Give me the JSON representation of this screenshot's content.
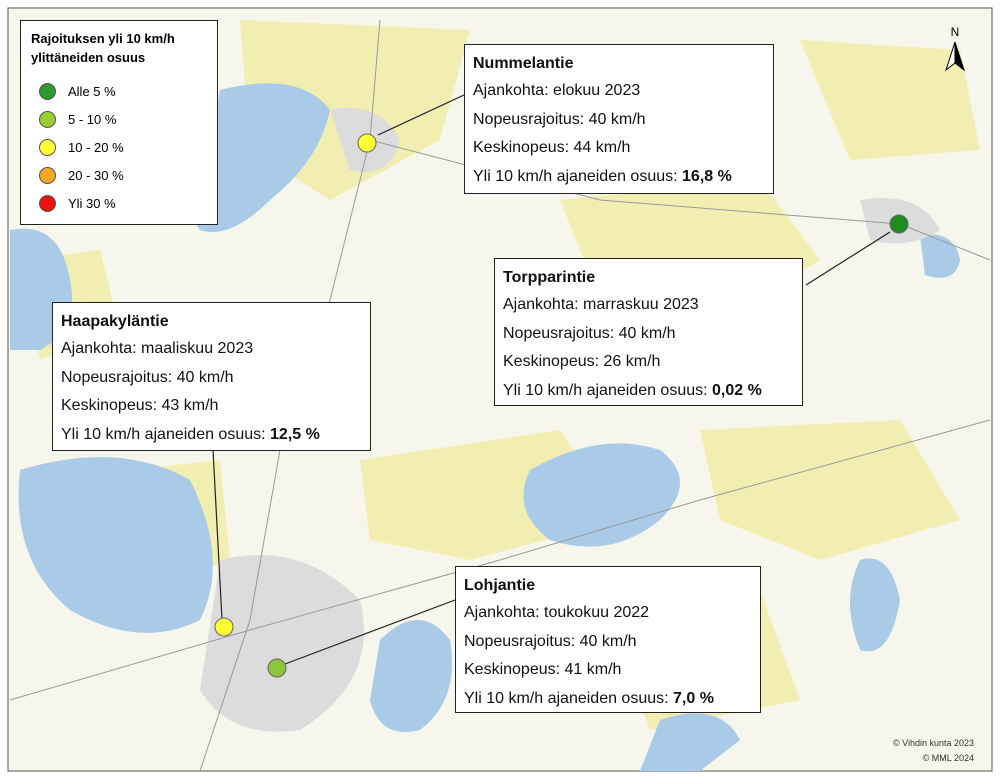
{
  "legend": {
    "title": "Rajoituksen yli 10 km/h ylittäneiden osuus",
    "items": [
      {
        "label": "Alle 5 %",
        "color": "#2e9a2e"
      },
      {
        "label": "5 - 10 %",
        "color": "#9acd32"
      },
      {
        "label": "10 - 20 %",
        "color": "#ffff33"
      },
      {
        "label": "20 - 30 %",
        "color": "#f5a623"
      },
      {
        "label": "Yli 30 %",
        "color": "#ee1111"
      }
    ]
  },
  "sites": [
    {
      "name": "Nummelantie",
      "date": "Ajankohta: elokuu 2023",
      "limit": "Nopeusrajoitus: 40 km/h",
      "speed": "Keskinopeus: 44 km/h",
      "share_label": "Yli 10 km/h ajaneiden osuus:",
      "share": "16,8 %",
      "color": "#ffff33"
    },
    {
      "name": "Torpparintie",
      "date": "Ajankohta: marraskuu 2023",
      "limit": "Nopeusrajoitus: 40 km/h",
      "speed": "Keskinopeus: 26 km/h",
      "share_label": "Yli 10 km/h ajaneiden osuus:",
      "share": "0,02 %",
      "color": "#1e8c1e"
    },
    {
      "name": "Haapakyläntie",
      "date": "Ajankohta: maaliskuu 2023",
      "limit": "Nopeusrajoitus: 40 km/h",
      "speed": "Keskinopeus: 43 km/h",
      "share_label": "Yli 10 km/h ajaneiden osuus:",
      "share": "12,5 %",
      "color": "#ffff33"
    },
    {
      "name": "Lohjantie",
      "date": "Ajankohta: toukokuu 2022",
      "limit": "Nopeusrajoitus: 40 km/h",
      "speed": "Keskinopeus: 41 km/h",
      "share_label": "Yli 10 km/h ajaneiden osuus:",
      "share": "7,0 %",
      "color": "#8cc63f"
    }
  ],
  "copyright": [
    "© Vihdin kunta 2023",
    "© MML 2024"
  ]
}
